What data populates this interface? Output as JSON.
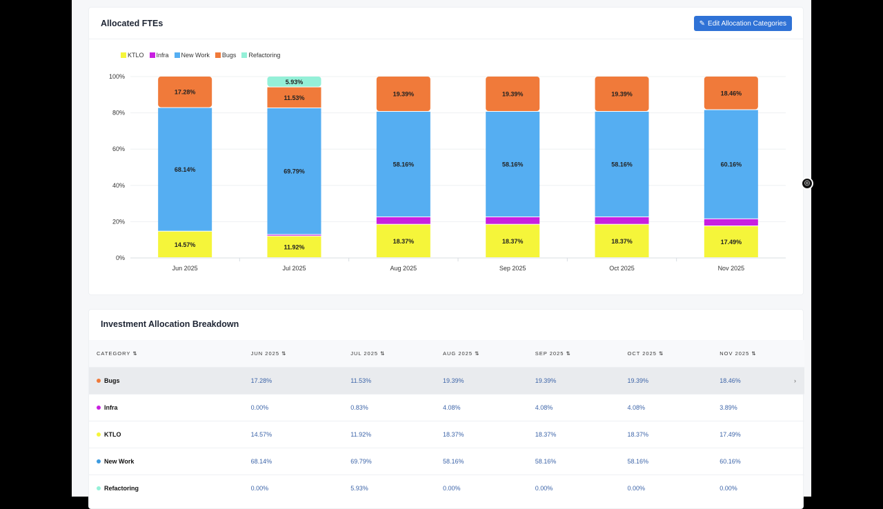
{
  "chart_card": {
    "title": "Allocated FTEs",
    "edit_button": "Edit Allocation Categories"
  },
  "colors": {
    "KTLO": "#f5f53a",
    "Infra": "#c81fe0",
    "New Work": "#55aef2",
    "Bugs": "#f07a3a",
    "Refactoring": "#94f0d8"
  },
  "chart_data": {
    "type": "bar",
    "stacked": true,
    "categories": [
      "Jun 2025",
      "Jul 2025",
      "Aug 2025",
      "Sep 2025",
      "Oct 2025",
      "Nov 2025"
    ],
    "ylim": [
      0,
      100
    ],
    "yticks": [
      "0%",
      "20%",
      "40%",
      "60%",
      "80%",
      "100%"
    ],
    "legend_position": "top-left",
    "series": [
      {
        "name": "KTLO",
        "values": [
          14.57,
          11.92,
          18.37,
          18.37,
          18.37,
          17.49
        ]
      },
      {
        "name": "Infra",
        "values": [
          0,
          0.83,
          4.08,
          4.08,
          4.08,
          3.89
        ]
      },
      {
        "name": "New Work",
        "values": [
          68.14,
          69.79,
          58.16,
          58.16,
          58.16,
          60.16
        ]
      },
      {
        "name": "Bugs",
        "values": [
          17.28,
          11.53,
          19.39,
          19.39,
          19.39,
          18.46
        ]
      },
      {
        "name": "Refactoring",
        "values": [
          0,
          5.93,
          0,
          0,
          0,
          0
        ]
      }
    ]
  },
  "table": {
    "title": "Investment Allocation Breakdown",
    "headers": [
      "CATEGORY",
      "JUN 2025",
      "JUL 2025",
      "AUG 2025",
      "SEP 2025",
      "OCT 2025",
      "NOV 2025"
    ],
    "sort_icon": "⇅",
    "rows": [
      {
        "name": "Bugs",
        "color": "#f07a3a",
        "values": [
          "17.28%",
          "11.53%",
          "19.39%",
          "19.39%",
          "19.39%",
          "18.46%"
        ]
      },
      {
        "name": "Infra",
        "color": "#c81fe0",
        "values": [
          "0.00%",
          "0.83%",
          "4.08%",
          "4.08%",
          "4.08%",
          "3.89%"
        ]
      },
      {
        "name": "KTLO",
        "color": "#f5f53a",
        "values": [
          "14.57%",
          "11.92%",
          "18.37%",
          "18.37%",
          "18.37%",
          "17.49%"
        ]
      },
      {
        "name": "New Work",
        "color": "#3d9be0",
        "values": [
          "68.14%",
          "69.79%",
          "58.16%",
          "58.16%",
          "58.16%",
          "60.16%"
        ]
      },
      {
        "name": "Refactoring",
        "color": "#94f0d8",
        "values": [
          "0.00%",
          "5.93%",
          "0.00%",
          "0.00%",
          "0.00%",
          "0.00%"
        ]
      }
    ]
  }
}
